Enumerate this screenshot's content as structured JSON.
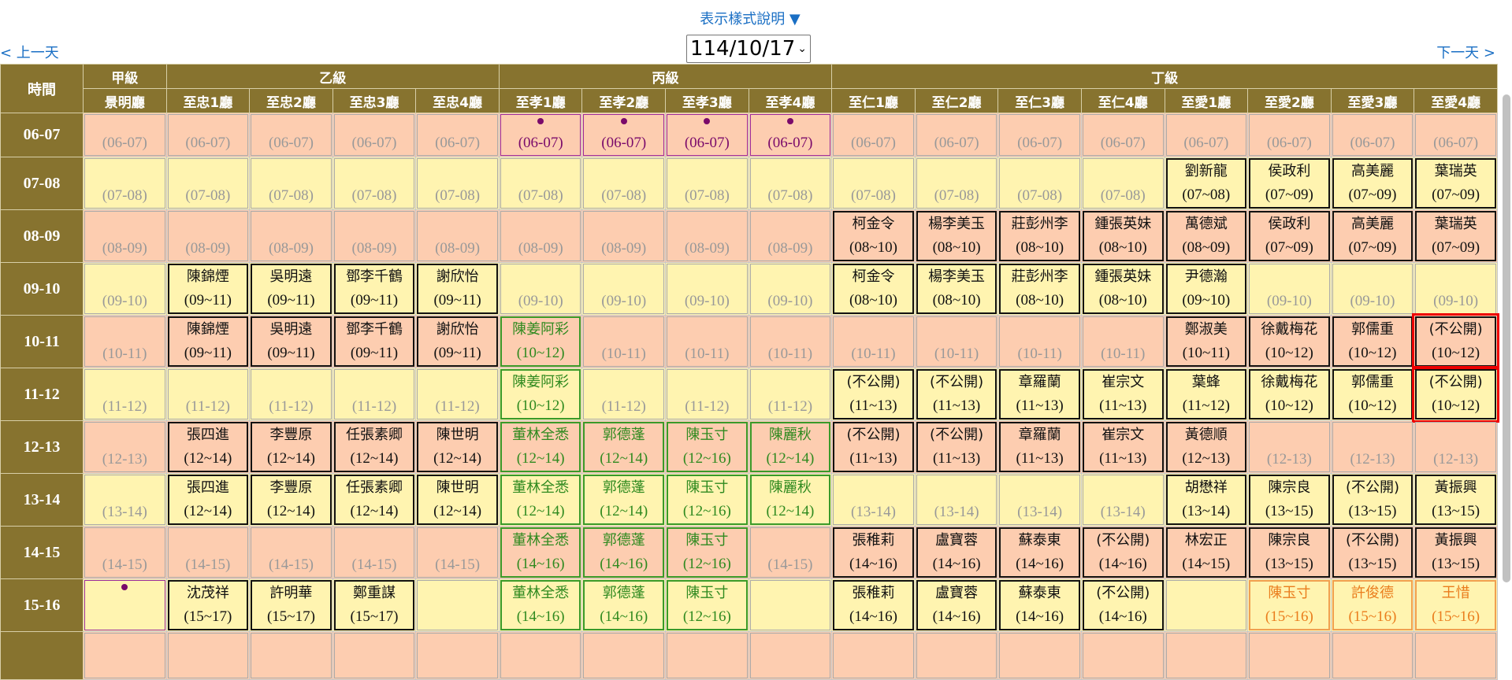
{
  "nav": {
    "legend_label": "表示樣式說明 ▼",
    "prev_day": "< 上一天",
    "next_day": "下一天 >",
    "date_value": "114/10/17"
  },
  "header": {
    "time_label": "時間",
    "groups": [
      {
        "label": "甲級",
        "span": 1
      },
      {
        "label": "乙級",
        "span": 4
      },
      {
        "label": "丙級",
        "span": 4
      },
      {
        "label": "丁級",
        "span": 8
      }
    ],
    "halls": [
      "景明廳",
      "至忠1廳",
      "至忠2廳",
      "至忠3廳",
      "至忠4廳",
      "至孝1廳",
      "至孝2廳",
      "至孝3廳",
      "至孝4廳",
      "至仁1廳",
      "至仁2廳",
      "至仁3廳",
      "至仁4廳",
      "至愛1廳",
      "至愛2廳",
      "至愛3廳",
      "至愛4廳"
    ]
  },
  "colors": {
    "header_bg": "#87732f",
    "row_odd": "#fdcdb0",
    "row_even": "#fff4b0",
    "green": "#2f8a1f",
    "orange": "#ea7d1d",
    "purple": "#7a0a6a",
    "highlight": "#e00000",
    "link": "#1a6fc4"
  },
  "legend_types": {
    "e": "open",
    "b": "booked",
    "g": "booked-green",
    "o": "booked-orange",
    "p": "marked-dot",
    "hl": "selected"
  },
  "rows": [
    {
      "time": "06-07",
      "cells": [
        [
          "e",
          "",
          "(06-07)"
        ],
        [
          "e",
          "",
          "(06-07)"
        ],
        [
          "e",
          "",
          "(06-07)"
        ],
        [
          "e",
          "",
          "(06-07)"
        ],
        [
          "e",
          "",
          "(06-07)"
        ],
        [
          "p",
          "",
          "(06-07)"
        ],
        [
          "p",
          "",
          "(06-07)"
        ],
        [
          "p",
          "",
          "(06-07)"
        ],
        [
          "p",
          "",
          "(06-07)"
        ],
        [
          "e",
          "",
          "(06-07)"
        ],
        [
          "e",
          "",
          "(06-07)"
        ],
        [
          "e",
          "",
          "(06-07)"
        ],
        [
          "e",
          "",
          "(06-07)"
        ],
        [
          "e",
          "",
          "(06-07)"
        ],
        [
          "e",
          "",
          "(06-07)"
        ],
        [
          "e",
          "",
          "(06-07)"
        ],
        [
          "e",
          "",
          "(06-07)"
        ]
      ]
    },
    {
      "time": "07-08",
      "cells": [
        [
          "e",
          "",
          "(07-08)"
        ],
        [
          "e",
          "",
          "(07-08)"
        ],
        [
          "e",
          "",
          "(07-08)"
        ],
        [
          "e",
          "",
          "(07-08)"
        ],
        [
          "e",
          "",
          "(07-08)"
        ],
        [
          "e",
          "",
          "(07-08)"
        ],
        [
          "e",
          "",
          "(07-08)"
        ],
        [
          "e",
          "",
          "(07-08)"
        ],
        [
          "e",
          "",
          "(07-08)"
        ],
        [
          "e",
          "",
          "(07-08)"
        ],
        [
          "e",
          "",
          "(07-08)"
        ],
        [
          "e",
          "",
          "(07-08)"
        ],
        [
          "e",
          "",
          "(07-08)"
        ],
        [
          "b",
          "劉新龍",
          "(07~08)"
        ],
        [
          "b",
          "侯政利",
          "(07~09)"
        ],
        [
          "b",
          "高美麗",
          "(07~09)"
        ],
        [
          "b",
          "葉瑞英",
          "(07~09)"
        ]
      ]
    },
    {
      "time": "08-09",
      "cells": [
        [
          "e",
          "",
          "(08-09)"
        ],
        [
          "e",
          "",
          "(08-09)"
        ],
        [
          "e",
          "",
          "(08-09)"
        ],
        [
          "e",
          "",
          "(08-09)"
        ],
        [
          "e",
          "",
          "(08-09)"
        ],
        [
          "e",
          "",
          "(08-09)"
        ],
        [
          "e",
          "",
          "(08-09)"
        ],
        [
          "e",
          "",
          "(08-09)"
        ],
        [
          "e",
          "",
          "(08-09)"
        ],
        [
          "b",
          "柯金令",
          "(08~10)"
        ],
        [
          "b",
          "楊李美玉",
          "(08~10)"
        ],
        [
          "b",
          "莊彭州李",
          "(08~10)"
        ],
        [
          "b",
          "鍾張英妹",
          "(08~10)"
        ],
        [
          "b",
          "萬德斌",
          "(08~09)"
        ],
        [
          "b",
          "侯政利",
          "(07~09)"
        ],
        [
          "b",
          "高美麗",
          "(07~09)"
        ],
        [
          "b",
          "葉瑞英",
          "(07~09)"
        ]
      ]
    },
    {
      "time": "09-10",
      "cells": [
        [
          "e",
          "",
          "(09-10)"
        ],
        [
          "b",
          "陳錦煙",
          "(09~11)"
        ],
        [
          "b",
          "吳明遠",
          "(09~11)"
        ],
        [
          "b",
          "鄧李千鶴",
          "(09~11)"
        ],
        [
          "b",
          "謝欣怡",
          "(09~11)"
        ],
        [
          "e",
          "",
          "(09-10)"
        ],
        [
          "e",
          "",
          "(09-10)"
        ],
        [
          "e",
          "",
          "(09-10)"
        ],
        [
          "e",
          "",
          "(09-10)"
        ],
        [
          "b",
          "柯金令",
          "(08~10)"
        ],
        [
          "b",
          "楊李美玉",
          "(08~10)"
        ],
        [
          "b",
          "莊彭州李",
          "(08~10)"
        ],
        [
          "b",
          "鍾張英妹",
          "(08~10)"
        ],
        [
          "b",
          "尹德瀚",
          "(09~10)"
        ],
        [
          "e",
          "",
          "(09-10)"
        ],
        [
          "e",
          "",
          "(09-10)"
        ],
        [
          "e",
          "",
          "(09-10)"
        ]
      ]
    },
    {
      "time": "10-11",
      "cells": [
        [
          "e",
          "",
          "(10-11)"
        ],
        [
          "b",
          "陳錦煙",
          "(09~11)"
        ],
        [
          "b",
          "吳明遠",
          "(09~11)"
        ],
        [
          "b",
          "鄧李千鶴",
          "(09~11)"
        ],
        [
          "b",
          "謝欣怡",
          "(09~11)"
        ],
        [
          "g",
          "陳姜阿彩",
          "(10~12)"
        ],
        [
          "e",
          "",
          "(10-11)"
        ],
        [
          "e",
          "",
          "(10-11)"
        ],
        [
          "e",
          "",
          "(10-11)"
        ],
        [
          "e",
          "",
          "(10-11)"
        ],
        [
          "e",
          "",
          "(10-11)"
        ],
        [
          "e",
          "",
          "(10-11)"
        ],
        [
          "e",
          "",
          "(10-11)"
        ],
        [
          "b",
          "鄭淑美",
          "(10~11)"
        ],
        [
          "b",
          "徐戴梅花",
          "(10~12)"
        ],
        [
          "b",
          "郭儒重",
          "(10~12)"
        ],
        [
          "b hl",
          "(不公開)",
          "(10~12)"
        ]
      ]
    },
    {
      "time": "11-12",
      "cells": [
        [
          "e",
          "",
          "(11-12)"
        ],
        [
          "e",
          "",
          "(11-12)"
        ],
        [
          "e",
          "",
          "(11-12)"
        ],
        [
          "e",
          "",
          "(11-12)"
        ],
        [
          "e",
          "",
          "(11-12)"
        ],
        [
          "g",
          "陳姜阿彩",
          "(10~12)"
        ],
        [
          "e",
          "",
          "(11-12)"
        ],
        [
          "e",
          "",
          "(11-12)"
        ],
        [
          "e",
          "",
          "(11-12)"
        ],
        [
          "b",
          "(不公開)",
          "(11~13)"
        ],
        [
          "b",
          "(不公開)",
          "(11~13)"
        ],
        [
          "b",
          "章羅蘭",
          "(11~13)"
        ],
        [
          "b",
          "崔宗文",
          "(11~13)"
        ],
        [
          "b",
          "葉蜂",
          "(11~12)"
        ],
        [
          "b",
          "徐戴梅花",
          "(10~12)"
        ],
        [
          "b",
          "郭儒重",
          "(10~12)"
        ],
        [
          "b hl",
          "(不公開)",
          "(10~12)"
        ]
      ]
    },
    {
      "time": "12-13",
      "cells": [
        [
          "e",
          "",
          "(12-13)"
        ],
        [
          "b",
          "張四進",
          "(12~14)"
        ],
        [
          "b",
          "李豐原",
          "(12~14)"
        ],
        [
          "b",
          "任張素卿",
          "(12~14)"
        ],
        [
          "b",
          "陳世明",
          "(12~14)"
        ],
        [
          "g",
          "董林全悉",
          "(12~14)"
        ],
        [
          "g",
          "郭德蓬",
          "(12~14)"
        ],
        [
          "g",
          "陳玉寸",
          "(12~16)"
        ],
        [
          "g",
          "陳麗秋",
          "(12~14)"
        ],
        [
          "b",
          "(不公開)",
          "(11~13)"
        ],
        [
          "b",
          "(不公開)",
          "(11~13)"
        ],
        [
          "b",
          "章羅蘭",
          "(11~13)"
        ],
        [
          "b",
          "崔宗文",
          "(11~13)"
        ],
        [
          "b",
          "黃德順",
          "(12~13)"
        ],
        [
          "e",
          "",
          "(12-13)"
        ],
        [
          "e",
          "",
          "(12-13)"
        ],
        [
          "e",
          "",
          "(12-13)"
        ]
      ]
    },
    {
      "time": "13-14",
      "cells": [
        [
          "e",
          "",
          "(13-14)"
        ],
        [
          "b",
          "張四進",
          "(12~14)"
        ],
        [
          "b",
          "李豐原",
          "(12~14)"
        ],
        [
          "b",
          "任張素卿",
          "(12~14)"
        ],
        [
          "b",
          "陳世明",
          "(12~14)"
        ],
        [
          "g",
          "董林全悉",
          "(12~14)"
        ],
        [
          "g",
          "郭德蓬",
          "(12~14)"
        ],
        [
          "g",
          "陳玉寸",
          "(12~16)"
        ],
        [
          "g",
          "陳麗秋",
          "(12~14)"
        ],
        [
          "e",
          "",
          "(13-14)"
        ],
        [
          "e",
          "",
          "(13-14)"
        ],
        [
          "e",
          "",
          "(13-14)"
        ],
        [
          "e",
          "",
          "(13-14)"
        ],
        [
          "b",
          "胡懋祥",
          "(13~14)"
        ],
        [
          "b",
          "陳宗良",
          "(13~15)"
        ],
        [
          "b",
          "(不公開)",
          "(13~15)"
        ],
        [
          "b",
          "黃振興",
          "(13~15)"
        ]
      ]
    },
    {
      "time": "14-15",
      "cells": [
        [
          "e",
          "",
          "(14-15)"
        ],
        [
          "e",
          "",
          "(14-15)"
        ],
        [
          "e",
          "",
          "(14-15)"
        ],
        [
          "e",
          "",
          "(14-15)"
        ],
        [
          "e",
          "",
          "(14-15)"
        ],
        [
          "g",
          "董林全悉",
          "(14~16)"
        ],
        [
          "g",
          "郭德蓬",
          "(14~16)"
        ],
        [
          "g",
          "陳玉寸",
          "(12~16)"
        ],
        [
          "e",
          "",
          "(14-15)"
        ],
        [
          "b",
          "張稚莉",
          "(14~16)"
        ],
        [
          "b",
          "盧寶蓉",
          "(14~16)"
        ],
        [
          "b",
          "蘇泰東",
          "(14~16)"
        ],
        [
          "b",
          "(不公開)",
          "(14~16)"
        ],
        [
          "b",
          "林宏正",
          "(14~15)"
        ],
        [
          "b",
          "陳宗良",
          "(13~15)"
        ],
        [
          "b",
          "(不公開)",
          "(13~15)"
        ],
        [
          "b",
          "黃振興",
          "(13~15)"
        ]
      ]
    },
    {
      "time": "15-16",
      "cells": [
        [
          "p",
          "",
          ""
        ],
        [
          "b",
          "沈茂祥",
          "(15~17)"
        ],
        [
          "b",
          "許明華",
          "(15~17)"
        ],
        [
          "b",
          "鄭重謀",
          "(15~17)"
        ],
        [
          "e",
          "",
          ""
        ],
        [
          "g",
          "董林全悉",
          "(14~16)"
        ],
        [
          "g",
          "郭德蓬",
          "(14~16)"
        ],
        [
          "g",
          "陳玉寸",
          "(12~16)"
        ],
        [
          "e",
          "",
          ""
        ],
        [
          "b",
          "張稚莉",
          "(14~16)"
        ],
        [
          "b",
          "盧寶蓉",
          "(14~16)"
        ],
        [
          "b",
          "蘇泰東",
          "(14~16)"
        ],
        [
          "b",
          "(不公開)",
          "(14~16)"
        ],
        [
          "e",
          "",
          ""
        ],
        [
          "o",
          "陳玉寸",
          "(15~16)"
        ],
        [
          "o",
          "許俊德",
          "(15~16)"
        ],
        [
          "o",
          "王惜",
          "(15~16)"
        ]
      ]
    }
  ]
}
